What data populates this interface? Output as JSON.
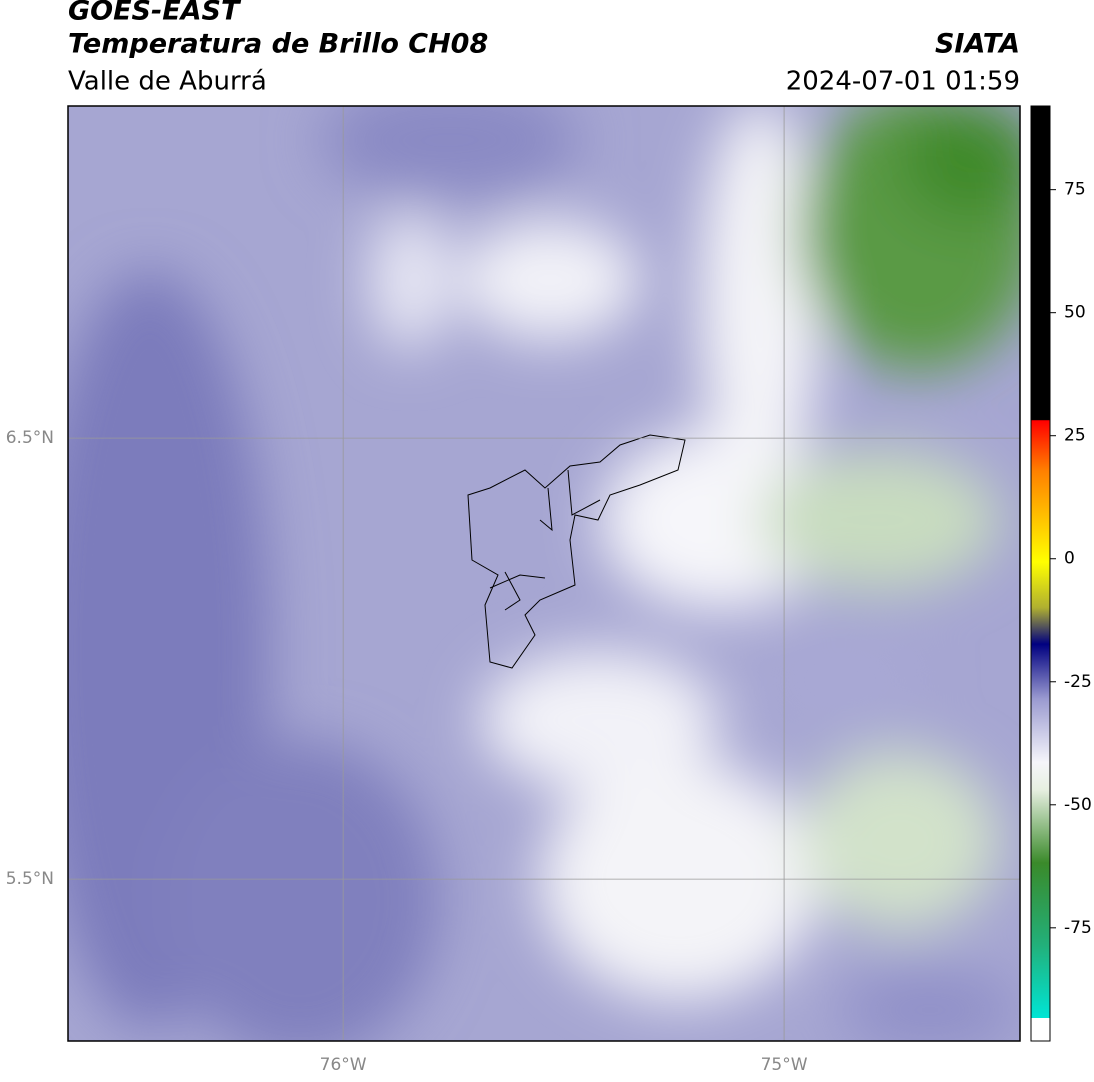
{
  "header": {
    "title": "GOES-EAST",
    "subtitle": "Temperatura de Brillo CH08",
    "region": "Valle de Aburrá",
    "source": "SIATA",
    "datetime": "2024-07-01 01:59"
  },
  "map": {
    "lonlim": [
      -76.624,
      -74.465
    ],
    "latlim": [
      5.133,
      7.253
    ],
    "lonticks": [
      {
        "value": -76,
        "label": "76°W"
      },
      {
        "value": -75,
        "label": "75°W"
      }
    ],
    "latticks": [
      {
        "value": 6.5,
        "label": "6.5°N"
      },
      {
        "value": 5.5,
        "label": "5.5°N"
      }
    ]
  },
  "colorbar": {
    "lim": [
      -98,
      92
    ],
    "ticks": [
      75,
      50,
      25,
      0,
      -25,
      -50,
      -75
    ]
  }
}
